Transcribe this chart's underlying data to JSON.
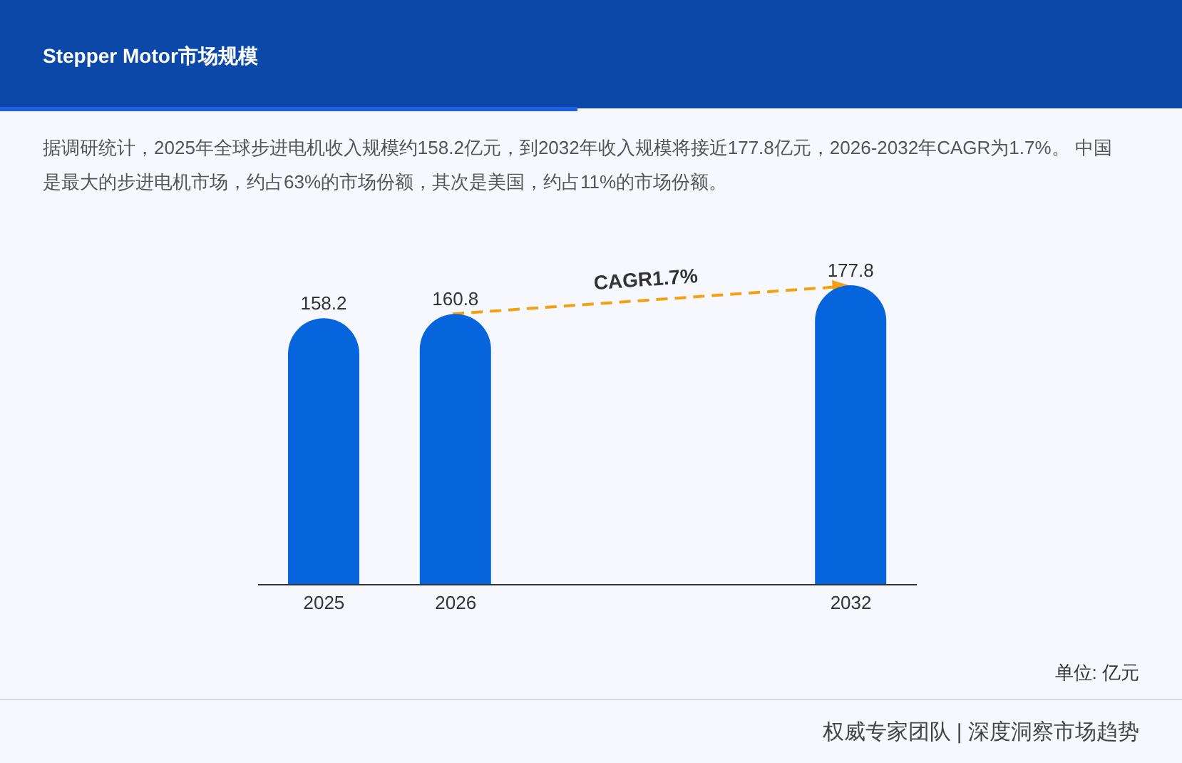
{
  "chart_data": {
    "type": "bar",
    "title": "Stepper Motor市场规模",
    "subtitle": "据调研统计，2025年全球步进电机收入规模约158.2亿元，到2032年收入规模将接近177.8亿元，2026-2032年CAGR为1.7%。 中国是最大的步进电机市场，约占63%的市场份额，其次是美国，约占11%的市场份额。",
    "categories": [
      "2025",
      "2026",
      null,
      null,
      "2032"
    ],
    "values": [
      158.2,
      160.8,
      null,
      null,
      177.8
    ],
    "color": "#0664dc",
    "data_labels": true,
    "grid": false,
    "legend": false,
    "annotations": [
      "CAGR1.7%",
      "单位: 亿元",
      "权威专家团队 | 深度洞察市场趋势"
    ]
  }
}
